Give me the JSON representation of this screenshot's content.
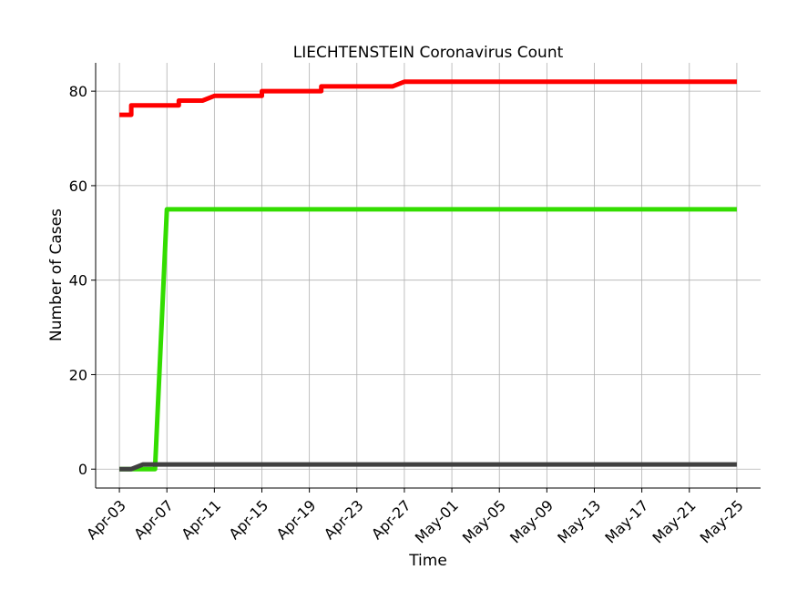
{
  "chart_data": {
    "type": "line",
    "title": "LIECHTENSTEIN Coronavirus Count",
    "xlabel": "Time",
    "ylabel": "Number of Cases",
    "x_start": "2020-04-03",
    "x_end": "2020-05-25",
    "xlim": [
      "2020-04-01",
      "2020-05-27"
    ],
    "ylim": [
      -4,
      86
    ],
    "yticks": [
      0,
      20,
      40,
      60,
      80
    ],
    "xticks": [
      "Apr-03",
      "Apr-07",
      "Apr-11",
      "Apr-15",
      "Apr-19",
      "Apr-23",
      "Apr-27",
      "May-01",
      "May-05",
      "May-09",
      "May-13",
      "May-17",
      "May-21",
      "May-25"
    ],
    "grid": true,
    "series": [
      {
        "color": "#ff0000",
        "points": [
          [
            "2020-04-03",
            75
          ],
          [
            "2020-04-04",
            75
          ],
          [
            "2020-04-04",
            77
          ],
          [
            "2020-04-08",
            77
          ],
          [
            "2020-04-08",
            78
          ],
          [
            "2020-04-10",
            78
          ],
          [
            "2020-04-11",
            79
          ],
          [
            "2020-04-15",
            79
          ],
          [
            "2020-04-15",
            80
          ],
          [
            "2020-04-20",
            80
          ],
          [
            "2020-04-20",
            81
          ],
          [
            "2020-04-26",
            81
          ],
          [
            "2020-04-27",
            82
          ],
          [
            "2020-05-25",
            82
          ]
        ]
      },
      {
        "color": "#33dd00",
        "points": [
          [
            "2020-04-03",
            0
          ],
          [
            "2020-04-06",
            0
          ],
          [
            "2020-04-07",
            55
          ],
          [
            "2020-05-25",
            55
          ]
        ]
      },
      {
        "color": "#404040",
        "points": [
          [
            "2020-04-03",
            0
          ],
          [
            "2020-04-04",
            0
          ],
          [
            "2020-04-05",
            1
          ],
          [
            "2020-05-25",
            1
          ]
        ]
      }
    ]
  }
}
